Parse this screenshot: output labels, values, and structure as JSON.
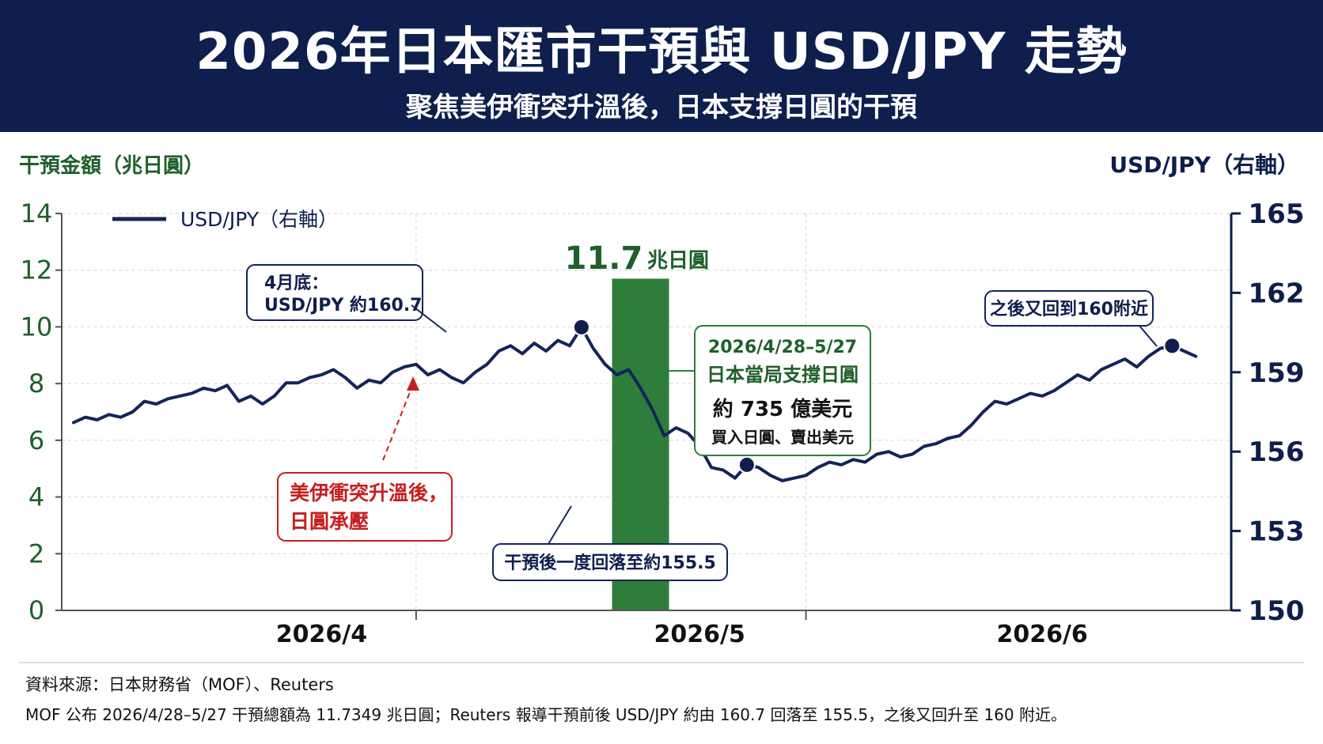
{
  "header": {
    "title": "2026年日本匯市干預與 USD/JPY 走勢",
    "subtitle": "聚焦美伊衝突升溫後，日本支撐日圓的干預"
  },
  "colors": {
    "navy": "#0e1f4d",
    "line": "#14245a",
    "green": "#2e7d3a",
    "green_text": "#1f5f2a",
    "red": "#c81e1e"
  },
  "chart_data": {
    "type": "bar+line",
    "left_axis": {
      "label": "干預金額（兆日圓）",
      "range": [
        0,
        14
      ],
      "ticks": [
        "0",
        "2",
        "4",
        "6",
        "8",
        "10",
        "12",
        "14"
      ]
    },
    "right_axis": {
      "label": "USD/JPY（右軸）",
      "range": [
        150,
        165
      ],
      "ticks": [
        "150",
        "153",
        "156",
        "159",
        "162",
        "165"
      ]
    },
    "x_axis": {
      "range": [
        "2026-03-24",
        "2026-07-01"
      ],
      "ticks": [
        {
          "label": "2026/4",
          "date": "2026-04-15"
        },
        {
          "label": "2026/5",
          "date": "2026-05-17"
        },
        {
          "label": "2026/6",
          "date": "2026-06-15"
        }
      ],
      "dividers": [
        "2026-04-23",
        "2026-05-26"
      ]
    },
    "legend": {
      "label": "USD/JPY（右軸）",
      "placement": "top-left"
    },
    "bar": {
      "date": "2026-05-12",
      "value": 11.7,
      "value_label": "11.7",
      "unit_label": "兆日圓"
    },
    "series": [
      {
        "name": "USD/JPY（右軸）",
        "points": [
          [
            "2026-03-25",
            157.1
          ],
          [
            "2026-03-26",
            157.3
          ],
          [
            "2026-03-27",
            157.2
          ],
          [
            "2026-03-28",
            157.4
          ],
          [
            "2026-03-29",
            157.3
          ],
          [
            "2026-03-30",
            157.5
          ],
          [
            "2026-03-31",
            157.9
          ],
          [
            "2026-04-01",
            157.8
          ],
          [
            "2026-04-02",
            158.0
          ],
          [
            "2026-04-03",
            158.1
          ],
          [
            "2026-04-04",
            158.2
          ],
          [
            "2026-04-05",
            158.4
          ],
          [
            "2026-04-06",
            158.3
          ],
          [
            "2026-04-07",
            158.5
          ],
          [
            "2026-04-08",
            157.9
          ],
          [
            "2026-04-09",
            158.1
          ],
          [
            "2026-04-10",
            157.8
          ],
          [
            "2026-04-11",
            158.1
          ],
          [
            "2026-04-12",
            158.6
          ],
          [
            "2026-04-13",
            158.6
          ],
          [
            "2026-04-14",
            158.8
          ],
          [
            "2026-04-15",
            158.9
          ],
          [
            "2026-04-16",
            159.1
          ],
          [
            "2026-04-17",
            158.8
          ],
          [
            "2026-04-18",
            158.4
          ],
          [
            "2026-04-19",
            158.7
          ],
          [
            "2026-04-20",
            158.6
          ],
          [
            "2026-04-21",
            159.0
          ],
          [
            "2026-04-22",
            159.2
          ],
          [
            "2026-04-23",
            159.3
          ],
          [
            "2026-04-24",
            158.9
          ],
          [
            "2026-04-25",
            159.1
          ],
          [
            "2026-04-26",
            158.8
          ],
          [
            "2026-04-27",
            158.6
          ],
          [
            "2026-04-28",
            159.0
          ],
          [
            "2026-04-29",
            159.3
          ],
          [
            "2026-04-30",
            159.8
          ],
          [
            "2026-05-01",
            160.0
          ],
          [
            "2026-05-02",
            159.7
          ],
          [
            "2026-05-03",
            160.1
          ],
          [
            "2026-05-04",
            159.8
          ],
          [
            "2026-05-05",
            160.2
          ],
          [
            "2026-05-06",
            160.0
          ],
          [
            "2026-05-07",
            160.7
          ],
          [
            "2026-05-08",
            159.9
          ],
          [
            "2026-05-09",
            159.3
          ],
          [
            "2026-05-10",
            158.9
          ],
          [
            "2026-05-11",
            159.1
          ],
          [
            "2026-05-12",
            158.4
          ],
          [
            "2026-05-13",
            157.6
          ],
          [
            "2026-05-14",
            156.6
          ],
          [
            "2026-05-15",
            156.9
          ],
          [
            "2026-05-16",
            156.7
          ],
          [
            "2026-05-17",
            156.2
          ],
          [
            "2026-05-18",
            155.4
          ],
          [
            "2026-05-19",
            155.3
          ],
          [
            "2026-05-20",
            155.0
          ],
          [
            "2026-05-21",
            155.5
          ],
          [
            "2026-05-22",
            155.4
          ],
          [
            "2026-05-23",
            155.1
          ],
          [
            "2026-05-24",
            154.9
          ],
          [
            "2026-05-25",
            155.0
          ],
          [
            "2026-05-26",
            155.1
          ],
          [
            "2026-05-27",
            155.4
          ],
          [
            "2026-05-28",
            155.6
          ],
          [
            "2026-05-29",
            155.5
          ],
          [
            "2026-05-30",
            155.7
          ],
          [
            "2026-05-31",
            155.6
          ],
          [
            "2026-06-01",
            155.9
          ],
          [
            "2026-06-02",
            156.0
          ],
          [
            "2026-06-03",
            155.8
          ],
          [
            "2026-06-04",
            155.9
          ],
          [
            "2026-06-05",
            156.2
          ],
          [
            "2026-06-06",
            156.3
          ],
          [
            "2026-06-07",
            156.5
          ],
          [
            "2026-06-08",
            156.6
          ],
          [
            "2026-06-09",
            157.0
          ],
          [
            "2026-06-10",
            157.5
          ],
          [
            "2026-06-11",
            157.9
          ],
          [
            "2026-06-12",
            157.8
          ],
          [
            "2026-06-13",
            158.0
          ],
          [
            "2026-06-14",
            158.2
          ],
          [
            "2026-06-15",
            158.1
          ],
          [
            "2026-06-16",
            158.3
          ],
          [
            "2026-06-17",
            158.6
          ],
          [
            "2026-06-18",
            158.9
          ],
          [
            "2026-06-19",
            158.7
          ],
          [
            "2026-06-20",
            159.1
          ],
          [
            "2026-06-21",
            159.3
          ],
          [
            "2026-06-22",
            159.5
          ],
          [
            "2026-06-23",
            159.2
          ],
          [
            "2026-06-24",
            159.6
          ],
          [
            "2026-06-25",
            159.9
          ],
          [
            "2026-06-26",
            160.0
          ],
          [
            "2026-06-27",
            159.8
          ],
          [
            "2026-06-28",
            159.6
          ]
        ]
      }
    ],
    "annotations": [
      {
        "lines": [
          "4月底：",
          "USD/JPY 約160.7"
        ]
      },
      {
        "lines": [
          "干預後一度回落至約155.5"
        ]
      },
      {
        "lines": [
          "之後又回到160附近"
        ]
      },
      {
        "lines": [
          "美伊衝突升溫後，",
          "日圓承壓"
        ]
      },
      {
        "lines": [
          "2026/4/28–5/27",
          "日本當局支撐日圓",
          "約 735 億美元",
          "買入日圓、賣出美元"
        ]
      }
    ]
  },
  "footer": {
    "source": "資料來源：日本財務省（MOF）、Reuters",
    "note": "MOF 公布 2026/4/28–5/27 干預總額為 11.7349 兆日圓；Reuters 報導干預前後 USD/JPY 約由 160.7 回落至 155.5，之後又回升至 160 附近。"
  }
}
